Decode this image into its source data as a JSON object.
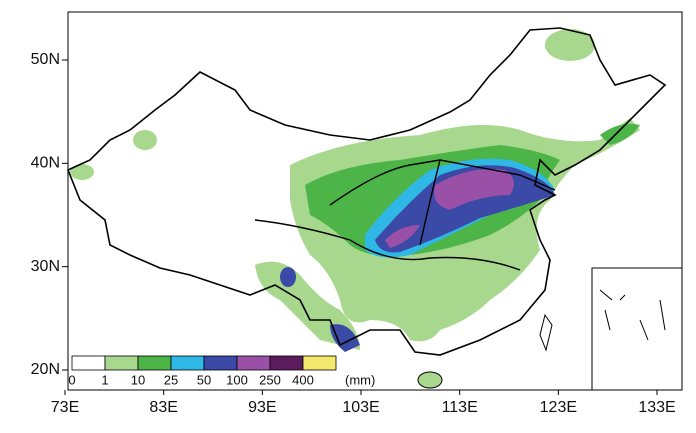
{
  "map": {
    "lat_ticks": [
      {
        "value": 20,
        "label": "20N"
      },
      {
        "value": 30,
        "label": "30N"
      },
      {
        "value": 40,
        "label": "40N"
      },
      {
        "value": 50,
        "label": "50N"
      }
    ],
    "lon_ticks": [
      {
        "value": 73,
        "label": "73E"
      },
      {
        "value": 83,
        "label": "83E"
      },
      {
        "value": 93,
        "label": "93E"
      },
      {
        "value": 103,
        "label": "103E"
      },
      {
        "value": 113,
        "label": "113E"
      },
      {
        "value": 123,
        "label": "123E"
      },
      {
        "value": 133,
        "label": "133E"
      }
    ],
    "legend": {
      "bounds": [
        0,
        1,
        10,
        25,
        50,
        100,
        250,
        400
      ],
      "unit": "(mm)",
      "colors": [
        "#ffffff",
        "#a8d88e",
        "#4db548",
        "#2fb8e6",
        "#3a4aa6",
        "#9a50a6",
        "#5b1b5c",
        "#f3e76c"
      ]
    }
  }
}
